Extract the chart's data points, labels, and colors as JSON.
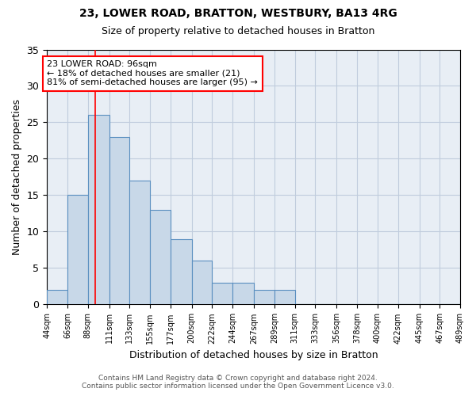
{
  "title1": "23, LOWER ROAD, BRATTON, WESTBURY, BA13 4RG",
  "title2": "Size of property relative to detached houses in Bratton",
  "xlabel": "Distribution of detached houses by size in Bratton",
  "ylabel": "Number of detached properties",
  "bar_values": [
    2,
    15,
    26,
    23,
    17,
    13,
    9,
    6,
    3,
    3,
    2,
    2,
    0,
    0,
    0,
    0,
    0,
    0,
    0,
    0
  ],
  "bin_edges": [
    44,
    66,
    88,
    111,
    133,
    155,
    177,
    200,
    222,
    244,
    267,
    289,
    311,
    333,
    356,
    378,
    400,
    422,
    445,
    467,
    489
  ],
  "tick_labels": [
    "44sqm",
    "66sqm",
    "88sqm",
    "111sqm",
    "133sqm",
    "155sqm",
    "177sqm",
    "200sqm",
    "222sqm",
    "244sqm",
    "267sqm",
    "289sqm",
    "311sqm",
    "333sqm",
    "356sqm",
    "378sqm",
    "400sqm",
    "422sqm",
    "445sqm",
    "467sqm",
    "489sqm"
  ],
  "bar_color": "#c8d8e8",
  "bar_edge_color": "#5a8fc0",
  "red_line_x": 96,
  "annotation_title": "23 LOWER ROAD: 96sqm",
  "annotation_line1": "← 18% of detached houses are smaller (21)",
  "annotation_line2": "81% of semi-detached houses are larger (95) →",
  "footer1": "Contains HM Land Registry data © Crown copyright and database right 2024.",
  "footer2": "Contains public sector information licensed under the Open Government Licence v3.0.",
  "ylim": [
    0,
    35
  ],
  "ax_facecolor": "#e8eef5",
  "background_color": "#ffffff",
  "grid_color": "#c0ccdd"
}
